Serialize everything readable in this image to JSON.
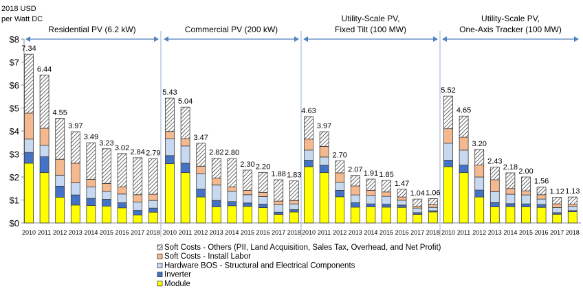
{
  "chart_data": {
    "type": "bar",
    "stacked": true,
    "ylabel_line1": "2018 USD",
    "ylabel_line2": "per Watt DC",
    "ylim": [
      0,
      8
    ],
    "yticks": [
      "$0",
      "$1",
      "$2",
      "$3",
      "$4",
      "$5",
      "$6",
      "$7",
      "$8"
    ],
    "grid": false,
    "legend_placement": "bottom",
    "categories": [
      "2010",
      "2011",
      "2012",
      "2013",
      "2014",
      "2015",
      "2016",
      "2017",
      "2018"
    ],
    "series_names": [
      "Module",
      "Inverter",
      "Hardware BOS - Structural and Electrical Components",
      "Soft Costs - Install Labor",
      "Soft Costs - Others (PII, Land Acquisition, Sales Tax, Overhead, and Net Profit)"
    ],
    "series_colors": [
      "#FFFF00",
      "#4472C4",
      "#C6D9F1",
      "#F5B98F",
      "hatch"
    ],
    "groups": [
      {
        "title_line1": "Residential PV (6.2 kW)",
        "title_line2": "",
        "totals": [
          "7.34",
          "6.44",
          "4.55",
          "3.97",
          "3.49",
          "3.23",
          "3.02",
          "2.84",
          "2.79"
        ],
        "series": [
          [
            2.6,
            2.19,
            1.12,
            0.78,
            0.76,
            0.73,
            0.66,
            0.35,
            0.47
          ],
          [
            0.47,
            0.69,
            0.48,
            0.44,
            0.31,
            0.3,
            0.22,
            0.2,
            0.18
          ],
          [
            0.58,
            0.5,
            0.48,
            0.53,
            0.5,
            0.34,
            0.38,
            0.36,
            0.33
          ],
          [
            1.13,
            0.74,
            0.69,
            0.85,
            0.33,
            0.35,
            0.31,
            0.32,
            0.27
          ],
          [
            2.56,
            2.32,
            1.78,
            1.37,
            1.59,
            1.51,
            1.45,
            1.61,
            1.54
          ]
        ]
      },
      {
        "title_line1": "Commercial PV (200 kW)",
        "title_line2": "",
        "totals": [
          "5.43",
          "5.04",
          "3.47",
          "2.82",
          "2.80",
          "2.30",
          "2.20",
          "1.88",
          "1.83"
        ],
        "series": [
          [
            2.58,
            2.19,
            1.13,
            0.7,
            0.75,
            0.72,
            0.67,
            0.37,
            0.48
          ],
          [
            0.35,
            0.41,
            0.34,
            0.28,
            0.18,
            0.15,
            0.15,
            0.1,
            0.1
          ],
          [
            0.74,
            0.75,
            0.68,
            0.67,
            0.45,
            0.36,
            0.33,
            0.33,
            0.25
          ],
          [
            0.31,
            0.32,
            0.32,
            0.3,
            0.19,
            0.19,
            0.18,
            0.15,
            0.14
          ],
          [
            1.45,
            1.37,
            1.0,
            0.87,
            1.23,
            0.88,
            0.87,
            0.93,
            0.86
          ]
        ]
      },
      {
        "title_line1": "Utility-Scale PV,",
        "title_line2": "Fixed Tilt (100 MW)",
        "totals": [
          "4.63",
          "3.97",
          "2.70",
          "2.07",
          "1.91",
          "1.85",
          "1.47",
          "1.04",
          "1.06"
        ],
        "series": [
          [
            2.45,
            2.19,
            1.14,
            0.69,
            0.7,
            0.69,
            0.68,
            0.37,
            0.48
          ],
          [
            0.28,
            0.32,
            0.28,
            0.19,
            0.13,
            0.13,
            0.1,
            0.08,
            0.05
          ],
          [
            0.44,
            0.36,
            0.36,
            0.34,
            0.37,
            0.34,
            0.21,
            0.2,
            0.15
          ],
          [
            0.48,
            0.46,
            0.4,
            0.39,
            0.22,
            0.19,
            0.14,
            0.08,
            0.11
          ],
          [
            0.98,
            0.64,
            0.52,
            0.46,
            0.49,
            0.5,
            0.34,
            0.31,
            0.27
          ]
        ]
      },
      {
        "title_line1": "Utility-Scale PV,",
        "title_line2": "One-Axis Tracker (100 MW)",
        "totals": [
          "5.52",
          "4.65",
          "3.20",
          "2.43",
          "2.18",
          "2.00",
          "1.56",
          "1.12",
          "1.13"
        ],
        "series": [
          [
            2.45,
            2.19,
            1.13,
            0.7,
            0.71,
            0.7,
            0.68,
            0.38,
            0.49
          ],
          [
            0.28,
            0.33,
            0.3,
            0.19,
            0.13,
            0.13,
            0.12,
            0.07,
            0.05
          ],
          [
            0.74,
            0.65,
            0.57,
            0.47,
            0.41,
            0.39,
            0.24,
            0.22,
            0.18
          ],
          [
            0.63,
            0.56,
            0.52,
            0.52,
            0.25,
            0.18,
            0.19,
            0.16,
            0.1
          ],
          [
            1.42,
            0.92,
            0.68,
            0.55,
            0.68,
            0.6,
            0.33,
            0.29,
            0.31
          ]
        ]
      }
    ]
  }
}
